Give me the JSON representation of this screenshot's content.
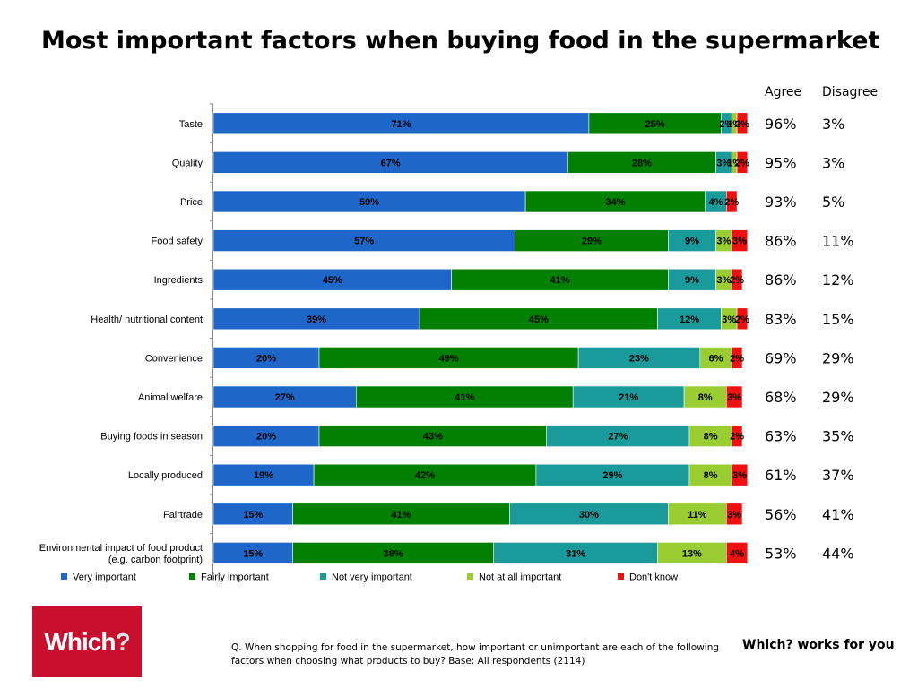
{
  "title": "Most important factors when buying food in the supermarket",
  "side_table": {
    "headers": [
      "Agree",
      "Disagree"
    ],
    "rows": [
      [
        "96%",
        "3%"
      ],
      [
        "95%",
        "3%"
      ],
      [
        "93%",
        "5%"
      ],
      [
        "86%",
        "11%"
      ],
      [
        "86%",
        "12%"
      ],
      [
        "83%",
        "15%"
      ],
      [
        "69%",
        "29%"
      ],
      [
        "68%",
        "29%"
      ],
      [
        "63%",
        "35%"
      ],
      [
        "61%",
        "37%"
      ],
      [
        "56%",
        "41%"
      ],
      [
        "53%",
        "44%"
      ]
    ]
  },
  "chart_data": {
    "type": "bar",
    "orientation": "horizontal",
    "stacked": true,
    "categories": [
      "Taste",
      "Quality",
      "Price",
      "Food safety",
      "Ingredients",
      "Health/ nutritional content",
      "Convenience",
      "Animal welfare",
      "Buying foods in season",
      "Locally produced",
      "Fairtrade",
      "Environmental impact of food product (e.g. carbon footprint)"
    ],
    "series": [
      {
        "name": "Very important",
        "color": "#1f66c9",
        "values": [
          71,
          67,
          59,
          57,
          45,
          39,
          20,
          27,
          20,
          19,
          15,
          15
        ]
      },
      {
        "name": "Fairly important",
        "color": "#018001",
        "values": [
          25,
          28,
          34,
          29,
          41,
          45,
          49,
          41,
          43,
          42,
          41,
          38
        ]
      },
      {
        "name": "Not very important",
        "color": "#1a9a9a",
        "values": [
          2,
          3,
          4,
          9,
          9,
          12,
          23,
          21,
          27,
          29,
          30,
          31
        ]
      },
      {
        "name": "Not at all important",
        "color": "#9acd32",
        "values": [
          1,
          1,
          0,
          3,
          3,
          3,
          6,
          8,
          8,
          8,
          11,
          13
        ]
      },
      {
        "name": "Don't know",
        "color": "#ee1111",
        "values": [
          2,
          2,
          2,
          3,
          2,
          2,
          2,
          3,
          2,
          3,
          3,
          4
        ]
      }
    ],
    "xlim": [
      0,
      100
    ],
    "legend_position": "bottom"
  },
  "logo_text": "Which?",
  "question": "Q. When shopping for food in the supermarket, how important or unimportant are each of the following factors when choosing what products to buy? Base: All respondents (2114)",
  "tagline": "Which? works for you"
}
